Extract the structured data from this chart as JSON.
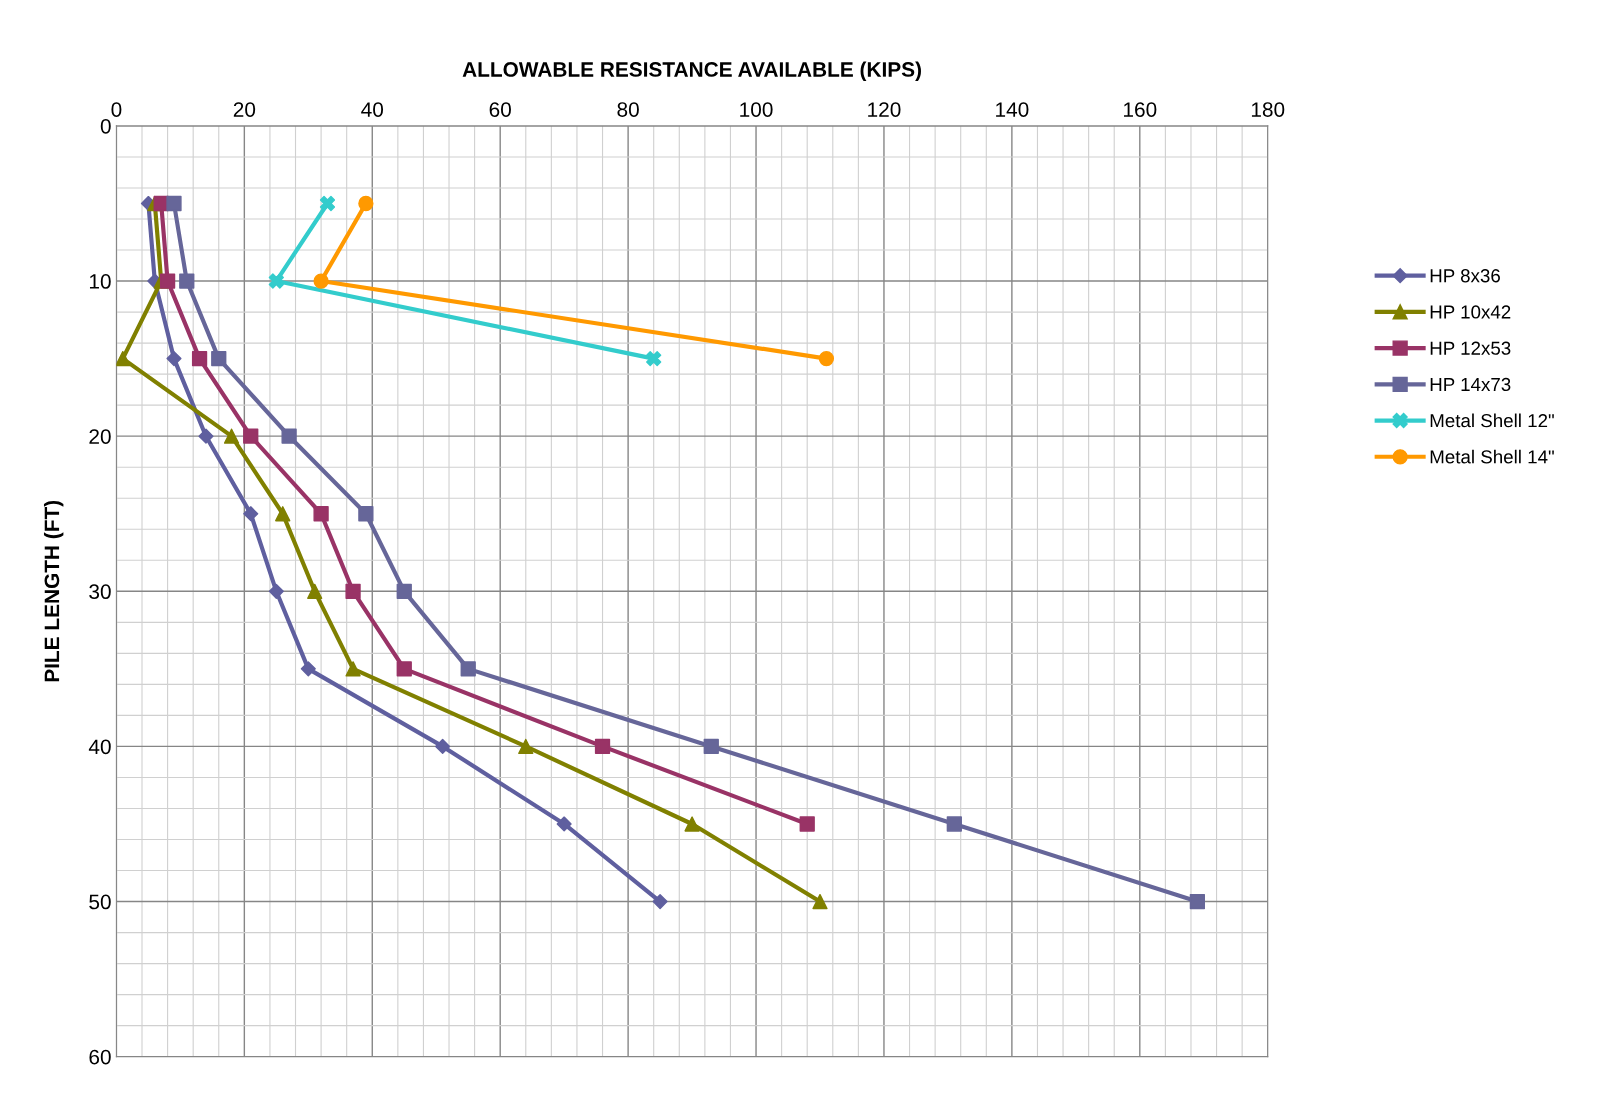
{
  "chart_data": {
    "type": "line",
    "xlabel": "ALLOWABLE RESISTANCE AVAILABLE (KIPS)",
    "ylabel": "PILE LENGTH (FT)",
    "xlim": [
      0,
      180
    ],
    "xticks": [
      0,
      20,
      40,
      60,
      80,
      100,
      120,
      140,
      160,
      180
    ],
    "ylim": [
      60,
      0
    ],
    "yticks": [
      0,
      10,
      20,
      30,
      40,
      50,
      60
    ],
    "grid": true,
    "legend": "right",
    "line_style": "solid",
    "series": [
      {
        "name": "HP 8x36",
        "color": "#5f5f9f",
        "marker": "diamond",
        "x": [
          5,
          6,
          9,
          14,
          21,
          25,
          30,
          51,
          70,
          85
        ],
        "values": [
          5,
          10,
          15,
          20,
          25,
          30,
          35,
          40,
          45,
          50
        ]
      },
      {
        "name": "HP 10x42",
        "color": "#808000",
        "marker": "triangle",
        "x": [
          6,
          7,
          1,
          18,
          26,
          31,
          37,
          64,
          90,
          110
        ],
        "values": [
          5,
          10,
          15,
          20,
          25,
          30,
          35,
          40,
          45,
          50
        ]
      },
      {
        "name": "HP 12x53",
        "color": "#993366",
        "marker": "square",
        "x": [
          7,
          8,
          13,
          21,
          32,
          37,
          45,
          76,
          108
        ],
        "values": [
          5,
          10,
          15,
          20,
          25,
          30,
          35,
          40,
          45
        ]
      },
      {
        "name": "HP 14x73",
        "color": "#666699",
        "marker": "square",
        "x": [
          9,
          11,
          16,
          27,
          39,
          45,
          55,
          93,
          131,
          169
        ],
        "values": [
          5,
          10,
          15,
          20,
          25,
          30,
          35,
          40,
          45,
          50
        ]
      },
      {
        "name": "Metal Shell 12\"",
        "color": "#33cccc",
        "marker": "cross",
        "x": [
          33,
          25,
          84
        ],
        "values": [
          5,
          10,
          15
        ]
      },
      {
        "name": "Metal Shell 14\"",
        "color": "#ff9900",
        "marker": "circle",
        "x": [
          39,
          32,
          111
        ],
        "values": [
          5,
          10,
          15
        ]
      }
    ]
  }
}
